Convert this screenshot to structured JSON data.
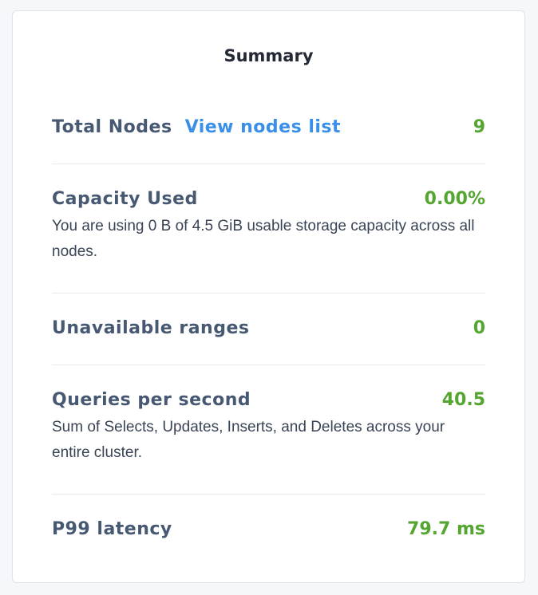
{
  "title": "Summary",
  "rows": [
    {
      "label": "Total Nodes",
      "link": "View nodes list",
      "value": "9"
    },
    {
      "label": "Capacity Used",
      "value": "0.00%",
      "description": "You are using 0 B of 4.5 GiB usable storage capacity across all nodes."
    },
    {
      "label": "Unavailable ranges",
      "value": "0"
    },
    {
      "label": "Queries per second",
      "value": "40.5",
      "description": "Sum of Selects, Updates, Inserts, and Deletes across your entire cluster."
    },
    {
      "label": "P99 latency",
      "value": "79.7 ms"
    }
  ],
  "colors": {
    "value": "#54a630",
    "link": "#3a8fe8",
    "label": "#475872"
  }
}
